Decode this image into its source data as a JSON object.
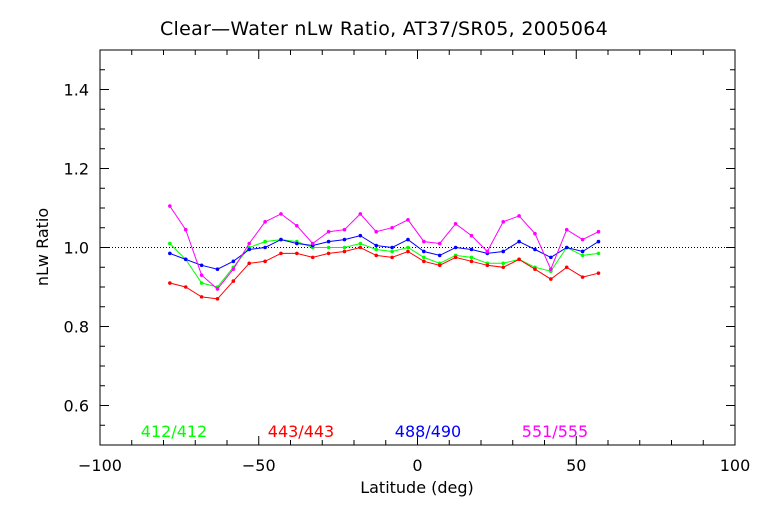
{
  "chart_data": {
    "type": "line",
    "title": "Clear—Water nLw Ratio, AT37/SR05, 2005064",
    "xlabel": "Latitude (deg)",
    "ylabel": "nLw Ratio",
    "xlim": [
      -100,
      100
    ],
    "ylim": [
      0.5,
      1.5
    ],
    "xticks": [
      -100,
      -50,
      0,
      50,
      100
    ],
    "xtick_labels": [
      "−100",
      "−50",
      "0",
      "50",
      "100"
    ],
    "yticks": [
      0.6,
      0.8,
      1.0,
      1.2,
      1.4
    ],
    "ytick_labels": [
      "0.6",
      "0.8",
      "1.0",
      "1.2",
      "1.4"
    ],
    "reference_line": 1.0,
    "grid": false,
    "legend_position": "bottom",
    "x": [
      -78,
      -73,
      -68,
      -63,
      -58,
      -53,
      -48,
      -43,
      -38,
      -33,
      -28,
      -23,
      -18,
      -13,
      -8,
      -3,
      2,
      7,
      12,
      17,
      22,
      27,
      32,
      37,
      42,
      47,
      52,
      57
    ],
    "series": [
      {
        "name": "412/412",
        "color": "#00ff00",
        "values": [
          1.01,
          0.97,
          0.91,
          0.9,
          0.95,
          1.0,
          1.015,
          1.02,
          1.015,
          1.0,
          1.0,
          1.0,
          1.01,
          0.995,
          0.99,
          1.0,
          0.975,
          0.96,
          0.98,
          0.975,
          0.96,
          0.96,
          0.97,
          0.95,
          0.94,
          1.0,
          0.98,
          0.985
        ]
      },
      {
        "name": "443/443",
        "color": "#ff0000",
        "values": [
          0.91,
          0.9,
          0.875,
          0.87,
          0.915,
          0.96,
          0.965,
          0.985,
          0.985,
          0.975,
          0.985,
          0.99,
          1.0,
          0.98,
          0.975,
          0.99,
          0.965,
          0.955,
          0.975,
          0.965,
          0.955,
          0.95,
          0.97,
          0.945,
          0.92,
          0.95,
          0.925,
          0.935
        ]
      },
      {
        "name": "488/490",
        "color": "#0000ff",
        "values": [
          0.985,
          0.97,
          0.955,
          0.945,
          0.965,
          0.995,
          1.0,
          1.02,
          1.01,
          1.005,
          1.015,
          1.02,
          1.03,
          1.005,
          1.0,
          1.02,
          0.99,
          0.98,
          1.0,
          0.995,
          0.985,
          0.99,
          1.015,
          0.995,
          0.975,
          1.0,
          0.99,
          1.015
        ]
      },
      {
        "name": "551/555",
        "color": "#ff00ff",
        "values": [
          1.105,
          1.045,
          0.93,
          0.895,
          0.945,
          1.01,
          1.065,
          1.085,
          1.055,
          1.01,
          1.04,
          1.045,
          1.085,
          1.04,
          1.05,
          1.07,
          1.015,
          1.01,
          1.06,
          1.03,
          0.99,
          1.065,
          1.08,
          1.035,
          0.945,
          1.045,
          1.02,
          1.04
        ]
      }
    ]
  }
}
